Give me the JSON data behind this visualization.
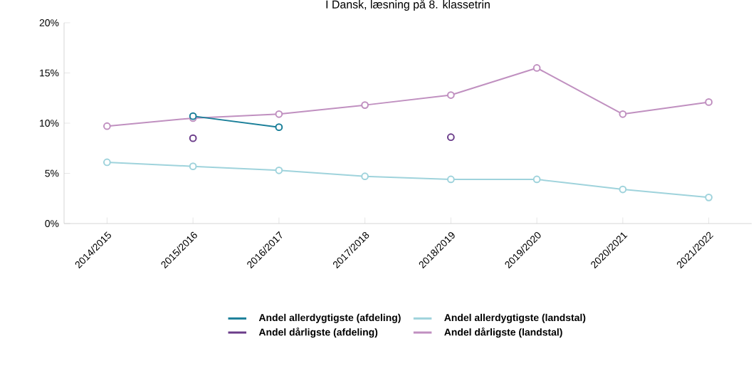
{
  "chart_data": {
    "type": "line",
    "title": "I Dansk, læsning på 8. klassetrin",
    "categories": [
      "2014/2015",
      "2015/2016",
      "2016/2017",
      "2017/2018",
      "2018/2019",
      "2019/2020",
      "2020/2021",
      "2021/2022"
    ],
    "series": [
      {
        "name": "Andel allerdygtigste (afdeling)",
        "color": "#1a7f99",
        "values": [
          null,
          10.7,
          9.6,
          null,
          null,
          null,
          null,
          null
        ]
      },
      {
        "name": "Andel allerdygtigste (landstal)",
        "color": "#9fd3dc",
        "values": [
          6.1,
          5.7,
          5.3,
          4.7,
          4.4,
          4.4,
          3.4,
          2.6
        ]
      },
      {
        "name": "Andel dårligste (afdeling)",
        "type": "scatter",
        "color": "#6b3d8a",
        "values": [
          null,
          8.5,
          null,
          null,
          8.6,
          null,
          null,
          null
        ]
      },
      {
        "name": "Andel dårligste (landstal)",
        "color": "#c090c0",
        "values": [
          9.7,
          10.5,
          10.9,
          11.8,
          12.8,
          15.5,
          10.9,
          12.1
        ]
      }
    ],
    "ylim": [
      0,
      20
    ],
    "yticks": [
      {
        "value": 0,
        "label": "0%"
      },
      {
        "value": 5,
        "label": "5%"
      },
      {
        "value": 10,
        "label": "10%"
      },
      {
        "value": 15,
        "label": "15%"
      },
      {
        "value": 20,
        "label": "20%"
      }
    ],
    "grid": false,
    "legend": "bottom",
    "marker": "circle",
    "line_style": "solid"
  }
}
